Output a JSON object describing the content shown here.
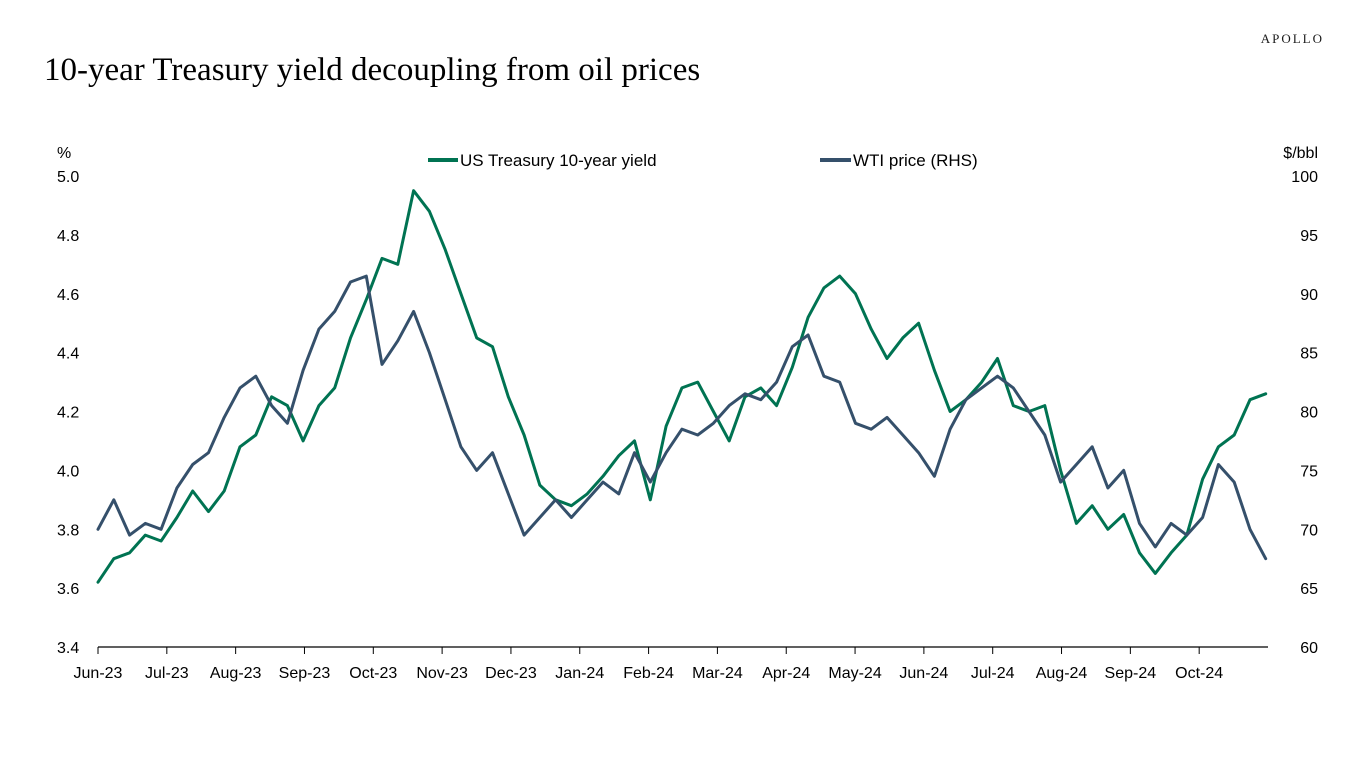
{
  "brand": "APOLLO",
  "title": "10-year Treasury yield decoupling from oil prices",
  "colors": {
    "yield": "#007352",
    "wti": "#35506b",
    "axis": "#000000"
  },
  "chart_data": {
    "type": "line",
    "title": "10-year Treasury yield decoupling from oil prices",
    "y_left_label": "%",
    "y_right_label": "$/bbl",
    "y_left_range": [
      3.4,
      5.0
    ],
    "y_right_range": [
      60,
      100
    ],
    "y_left_ticks": [
      "3.4",
      "3.6",
      "3.8",
      "4.0",
      "4.2",
      "4.4",
      "4.6",
      "4.8",
      "5.0"
    ],
    "y_right_ticks": [
      "60",
      "65",
      "70",
      "75",
      "80",
      "85",
      "90",
      "95",
      "100"
    ],
    "x_ticks": [
      "Jun-23",
      "Jul-23",
      "Aug-23",
      "Sep-23",
      "Oct-23",
      "Nov-23",
      "Dec-23",
      "Jan-24",
      "Feb-24",
      "Mar-24",
      "Apr-24",
      "May-24",
      "Jun-24",
      "Jul-24",
      "Aug-24",
      "Sep-24",
      "Oct-24"
    ],
    "legend_position": "top-center",
    "series": [
      {
        "name": "US Treasury 10-year yield",
        "axis": "left",
        "color": "#007352",
        "x": [
          "2023-06-01",
          "2023-06-08",
          "2023-06-15",
          "2023-06-22",
          "2023-06-29",
          "2023-07-06",
          "2023-07-13",
          "2023-07-20",
          "2023-07-27",
          "2023-08-03",
          "2023-08-10",
          "2023-08-17",
          "2023-08-24",
          "2023-08-31",
          "2023-09-07",
          "2023-09-14",
          "2023-09-21",
          "2023-09-28",
          "2023-10-05",
          "2023-10-12",
          "2023-10-19",
          "2023-10-26",
          "2023-11-02",
          "2023-11-09",
          "2023-11-16",
          "2023-11-23",
          "2023-11-30",
          "2023-12-07",
          "2023-12-14",
          "2023-12-21",
          "2023-12-28",
          "2024-01-04",
          "2024-01-11",
          "2024-01-18",
          "2024-01-25",
          "2024-02-01",
          "2024-02-08",
          "2024-02-15",
          "2024-02-22",
          "2024-02-29",
          "2024-03-07",
          "2024-03-14",
          "2024-03-21",
          "2024-03-28",
          "2024-04-04",
          "2024-04-11",
          "2024-04-18",
          "2024-04-25",
          "2024-05-02",
          "2024-05-09",
          "2024-05-16",
          "2024-05-23",
          "2024-05-30",
          "2024-06-06",
          "2024-06-13",
          "2024-06-20",
          "2024-06-27",
          "2024-07-04",
          "2024-07-11",
          "2024-07-18",
          "2024-07-25",
          "2024-08-01",
          "2024-08-08",
          "2024-08-15",
          "2024-08-22",
          "2024-08-29",
          "2024-09-05",
          "2024-09-12",
          "2024-09-19",
          "2024-09-26",
          "2024-10-03",
          "2024-10-10",
          "2024-10-17",
          "2024-10-24",
          "2024-10-31"
        ],
        "values": [
          3.62,
          3.7,
          3.72,
          3.78,
          3.76,
          3.84,
          3.93,
          3.86,
          3.93,
          4.08,
          4.12,
          4.25,
          4.22,
          4.1,
          4.22,
          4.28,
          4.45,
          4.58,
          4.72,
          4.7,
          4.95,
          4.88,
          4.75,
          4.6,
          4.45,
          4.42,
          4.25,
          4.12,
          3.95,
          3.9,
          3.88,
          3.92,
          3.98,
          4.05,
          4.1,
          3.9,
          4.15,
          4.28,
          4.3,
          4.2,
          4.1,
          4.25,
          4.28,
          4.22,
          4.35,
          4.52,
          4.62,
          4.66,
          4.6,
          4.48,
          4.38,
          4.45,
          4.5,
          4.34,
          4.2,
          4.24,
          4.3,
          4.38,
          4.22,
          4.2,
          4.22,
          4.0,
          3.82,
          3.88,
          3.8,
          3.85,
          3.72,
          3.65,
          3.72,
          3.78,
          3.97,
          4.08,
          4.12,
          4.24,
          4.26
        ]
      },
      {
        "name": "WTI price (RHS)",
        "axis": "right",
        "color": "#35506b",
        "x": [
          "2023-06-01",
          "2023-06-08",
          "2023-06-15",
          "2023-06-22",
          "2023-06-29",
          "2023-07-06",
          "2023-07-13",
          "2023-07-20",
          "2023-07-27",
          "2023-08-03",
          "2023-08-10",
          "2023-08-17",
          "2023-08-24",
          "2023-08-31",
          "2023-09-07",
          "2023-09-14",
          "2023-09-21",
          "2023-09-28",
          "2023-10-05",
          "2023-10-12",
          "2023-10-19",
          "2023-10-26",
          "2023-11-02",
          "2023-11-09",
          "2023-11-16",
          "2023-11-23",
          "2023-11-30",
          "2023-12-07",
          "2023-12-14",
          "2023-12-21",
          "2023-12-28",
          "2024-01-04",
          "2024-01-11",
          "2024-01-18",
          "2024-01-25",
          "2024-02-01",
          "2024-02-08",
          "2024-02-15",
          "2024-02-22",
          "2024-02-29",
          "2024-03-07",
          "2024-03-14",
          "2024-03-21",
          "2024-03-28",
          "2024-04-04",
          "2024-04-11",
          "2024-04-18",
          "2024-04-25",
          "2024-05-02",
          "2024-05-09",
          "2024-05-16",
          "2024-05-23",
          "2024-05-30",
          "2024-06-06",
          "2024-06-13",
          "2024-06-20",
          "2024-06-27",
          "2024-07-04",
          "2024-07-11",
          "2024-07-18",
          "2024-07-25",
          "2024-08-01",
          "2024-08-08",
          "2024-08-15",
          "2024-08-22",
          "2024-08-29",
          "2024-09-05",
          "2024-09-12",
          "2024-09-19",
          "2024-09-26",
          "2024-10-03",
          "2024-10-10",
          "2024-10-17",
          "2024-10-24",
          "2024-10-31"
        ],
        "values": [
          70.0,
          72.5,
          69.5,
          70.5,
          70.0,
          73.5,
          75.5,
          76.5,
          79.5,
          82.0,
          83.0,
          80.5,
          79.0,
          83.5,
          87.0,
          88.5,
          91.0,
          91.5,
          84.0,
          86.0,
          88.5,
          85.0,
          81.0,
          77.0,
          75.0,
          76.5,
          73.0,
          69.5,
          71.0,
          72.5,
          71.0,
          72.5,
          74.0,
          73.0,
          76.5,
          74.0,
          76.5,
          78.5,
          78.0,
          79.0,
          80.5,
          81.5,
          81.0,
          82.5,
          85.5,
          86.5,
          83.0,
          82.5,
          79.0,
          78.5,
          79.5,
          78.0,
          76.5,
          74.5,
          78.5,
          81.0,
          82.0,
          83.0,
          82.0,
          80.0,
          78.0,
          74.0,
          75.5,
          77.0,
          73.5,
          75.0,
          70.5,
          68.5,
          70.5,
          69.5,
          71.0,
          75.5,
          74.0,
          70.0,
          67.5
        ]
      }
    ]
  }
}
